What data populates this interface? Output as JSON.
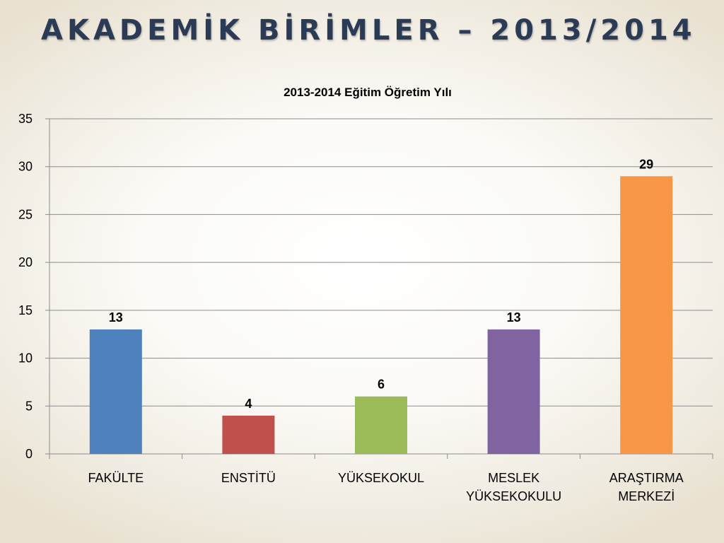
{
  "slide": {
    "title": "AKADEMİK BİRİMLER – 2013/2014"
  },
  "chart_data": {
    "type": "bar",
    "title": "2013-2014 Eğitim Öğretim Yılı",
    "categories": [
      [
        "FAKÜLTE"
      ],
      [
        "ENSTİTÜ"
      ],
      [
        "YÜKSEKOKUL"
      ],
      [
        "MESLEK",
        "YÜKSEKOKULU"
      ],
      [
        "ARAŞTIRMA",
        "MERKEZİ"
      ]
    ],
    "values": [
      13,
      4,
      6,
      13,
      29
    ],
    "colors": [
      "#4f81bd",
      "#c0504d",
      "#9bbb59",
      "#8064a2",
      "#f79646"
    ],
    "ylim": [
      0,
      35
    ],
    "yticks": [
      0,
      5,
      10,
      15,
      20,
      25,
      30,
      35
    ],
    "grid": true,
    "data_labels": true,
    "legend": "none"
  }
}
